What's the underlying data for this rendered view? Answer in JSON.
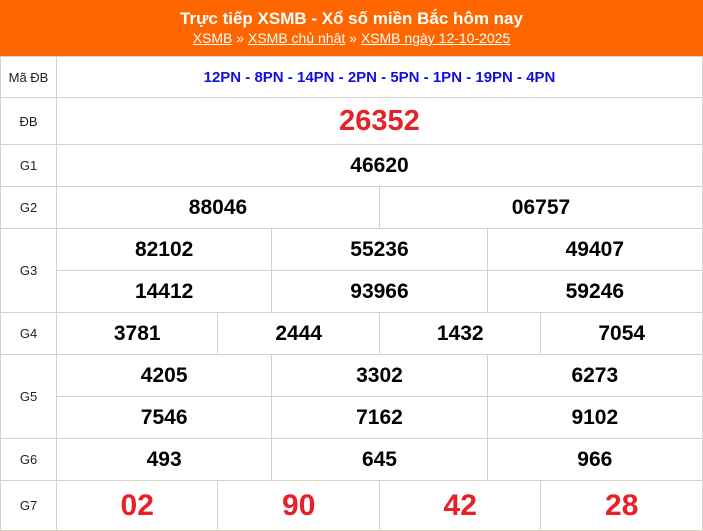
{
  "header": {
    "title": "Trực tiếp XSMB - Xổ số miền Bắc hôm nay",
    "breadcrumb": [
      "XSMB",
      "XSMB chủ nhật",
      "XSMB ngày 12-10-2025"
    ],
    "separator": "»",
    "bg_color": "#ff6600"
  },
  "results": {
    "code_label": "Mã ĐB",
    "code": "12PN - 8PN - 14PN - 2PN - 5PN - 1PN - 19PN - 4PN",
    "db_label": "ĐB",
    "db": "26352",
    "g1_label": "G1",
    "g1": "46620",
    "g2_label": "G2",
    "g2": [
      "88046",
      "06757"
    ],
    "g3_label": "G3",
    "g3": [
      "82102",
      "55236",
      "49407",
      "14412",
      "93966",
      "59246"
    ],
    "g4_label": "G4",
    "g4": [
      "3781",
      "2444",
      "1432",
      "7054"
    ],
    "g5_label": "G5",
    "g5": [
      "4205",
      "3302",
      "6273",
      "7546",
      "7162",
      "9102"
    ],
    "g6_label": "G6",
    "g6": [
      "493",
      "645",
      "966"
    ],
    "g7_label": "G7",
    "g7": [
      "02",
      "90",
      "42",
      "28"
    ]
  },
  "colors": {
    "code": "#1010e0",
    "highlight": "#e8202a"
  }
}
